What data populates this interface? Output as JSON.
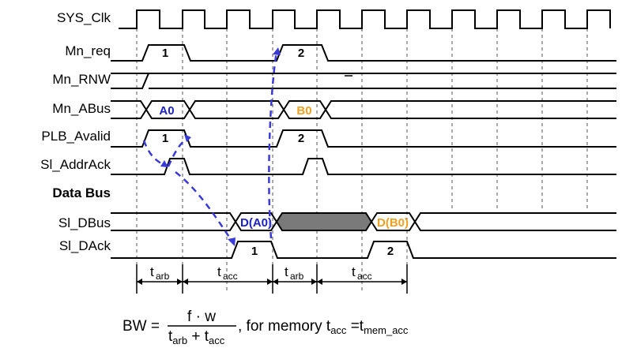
{
  "signals": {
    "sys_clk": "SYS_Clk",
    "mn_req": "Mn_req",
    "mn_rnw": "Mn_RNW",
    "mn_abus": "Mn_ABus",
    "plb_avalid": "PLB_Avalid",
    "sl_addrack": "Sl_AddrAck",
    "data_bus": "Data Bus",
    "sl_dbus": "Sl_DBus",
    "sl_dack": "Sl_DAck"
  },
  "pulses": {
    "req_1": "1",
    "req_2": "2",
    "avalid_1": "1",
    "avalid_2": "2",
    "dack_1": "1",
    "dack_2": "2"
  },
  "bus_values": {
    "a0": "A0",
    "b0": "B0",
    "d_a0": "D(A0)",
    "d_b0": "D(B0)"
  },
  "timing": {
    "t": "t",
    "arb": "arb",
    "acc": "acc"
  },
  "formula": {
    "bw": "BW =",
    "numerator": "f · w",
    "den_t1": "t",
    "den_sub1": "arb",
    "den_plus": " + t",
    "den_sub2": "acc",
    "suffix_pre": ",  for memory t",
    "suffix_sub1": "acc",
    "suffix_mid": " =t",
    "suffix_sub2": "mem_acc"
  },
  "colors": {
    "blue": "#1a22c8",
    "orange": "#f0a020",
    "arrow": "#3a3ad8",
    "shaded": "#7a7a7a"
  }
}
